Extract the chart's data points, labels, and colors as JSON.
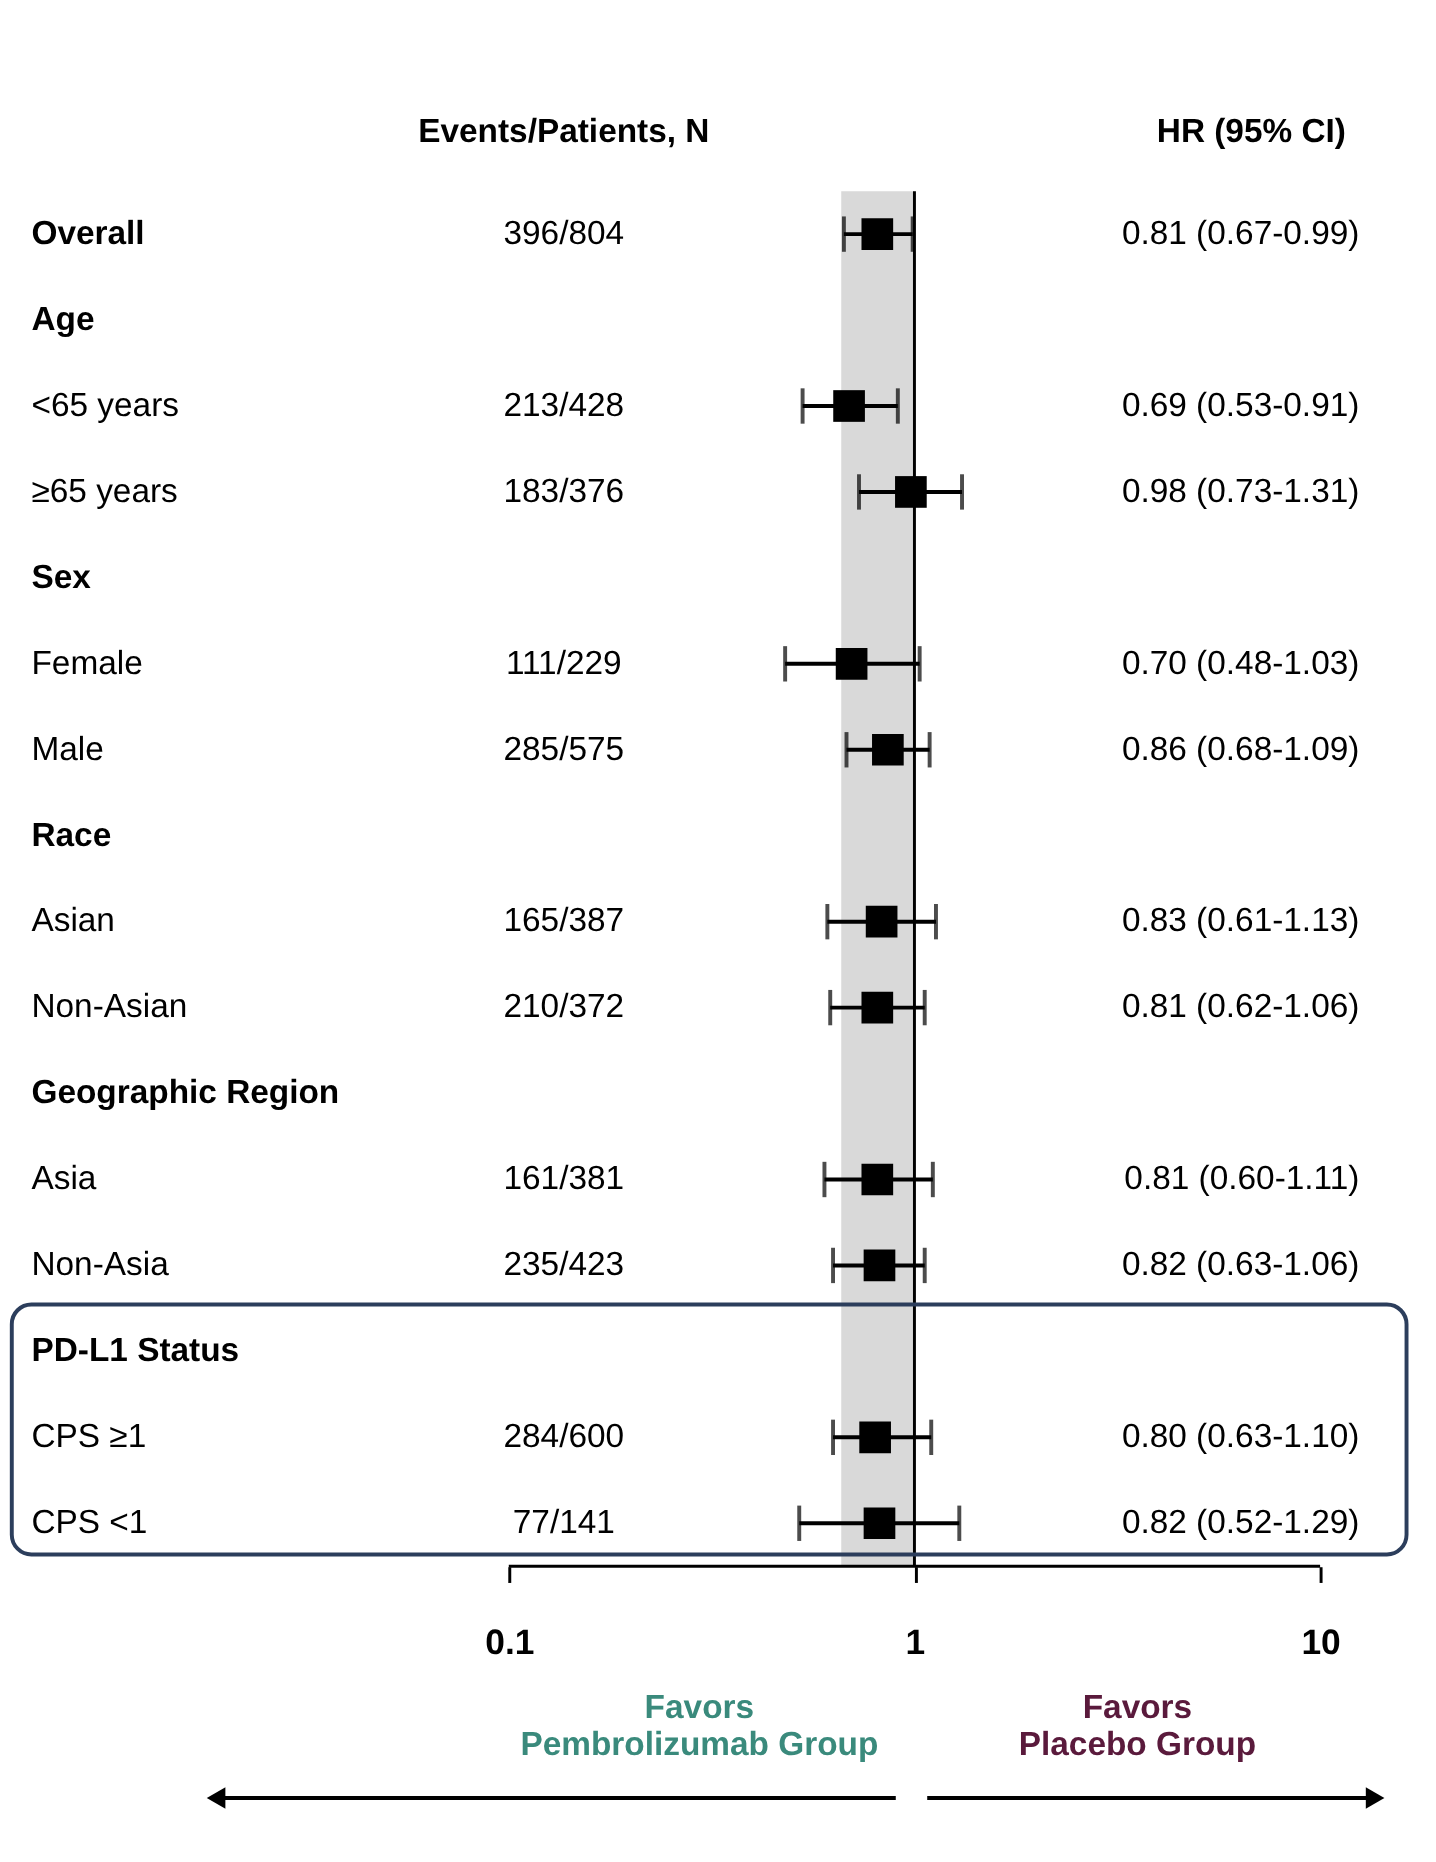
{
  "chart_data": {
    "type": "scatter",
    "orientation": "horizontal",
    "categories": [
      "Overall",
      "Age",
      "<65 years",
      "≥65 years",
      "Sex",
      "Female",
      "Male",
      "Race",
      "Asian",
      "Non-Asian",
      "Geographic Region",
      "Asia",
      "Non-Asia",
      "PD-L1 Status",
      "CPS ≥1",
      "CPS <1"
    ],
    "values": [
      0.81,
      null,
      0.69,
      0.98,
      null,
      0.7,
      0.86,
      null,
      0.83,
      0.81,
      null,
      0.81,
      0.82,
      null,
      0.8,
      0.82
    ],
    "errors": [
      [
        0.67,
        0.99
      ],
      null,
      [
        0.53,
        0.91
      ],
      [
        0.73,
        1.31
      ],
      null,
      [
        0.48,
        1.03
      ],
      [
        0.68,
        1.09
      ],
      null,
      [
        0.61,
        1.13
      ],
      [
        0.62,
        1.06
      ],
      null,
      [
        0.6,
        1.11
      ],
      [
        0.63,
        1.06
      ],
      null,
      [
        0.63,
        1.1
      ],
      [
        0.52,
        1.29
      ]
    ],
    "color": "#000000",
    "marker": "square",
    "log": "x",
    "xlim": [
      0.1,
      10
    ],
    "xticks": [
      0.1,
      1,
      10
    ],
    "grid": false,
    "ref_lines": [
      {
        "axis": "x",
        "value": 1,
        "color": "#000000"
      }
    ],
    "bands": [
      {
        "axis": "x",
        "from": 0.66,
        "to": 1,
        "color": "#d9d9d9"
      }
    ],
    "annotations": [
      "Events/Patients, N",
      "HR (95%  CI)",
      "Favors\nPembrolizumab Group",
      "Favors\nPlacebo Group",
      "396/804",
      "213/428",
      "183/376",
      "111/229",
      "285/575",
      "165/387",
      "210/372",
      "161/381",
      "235/423",
      "284/600",
      "77/141",
      "0.81 (0.67-0.99)",
      "0.69 (0.53-0.91)",
      "0.98 (0.73-1.31)",
      "0.70 (0.48-1.03)",
      "0.86 (0.68-1.09)",
      "0.83 (0.61-1.13)",
      "0.81 (0.62-1.06)",
      "0.81 (0.60-1.11)",
      "0.82 (0.63-1.06)",
      "0.80 (0.63-1.10)",
      "0.82 (0.52-1.29)"
    ]
  }
}
